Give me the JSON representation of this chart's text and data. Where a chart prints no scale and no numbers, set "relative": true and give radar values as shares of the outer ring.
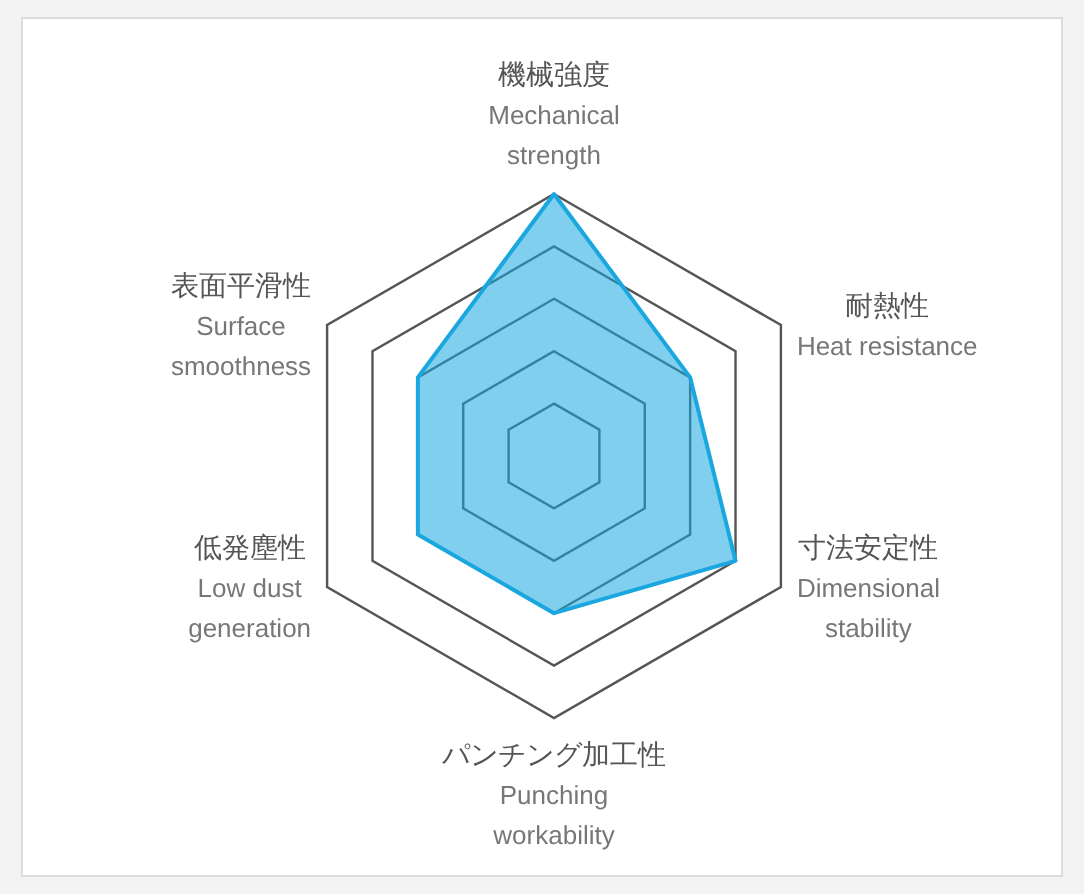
{
  "chart_data": {
    "type": "radar",
    "relative": true,
    "categories": [
      "機械強度\nMechanical\nstrength",
      "耐熱性\nHeat resistance",
      "寸法安定性\nDimensional\nstability",
      "パンチング加工性\nPunching\nworkability",
      "低発塵性\nLow dust\ngeneration",
      "表面平滑性\nSurface\nsmoothness"
    ],
    "series": [
      {
        "color": "#1aa7e0",
        "values": [
          1,
          0.6,
          0.8,
          0.6,
          0.6,
          0.6
        ]
      }
    ]
  }
}
